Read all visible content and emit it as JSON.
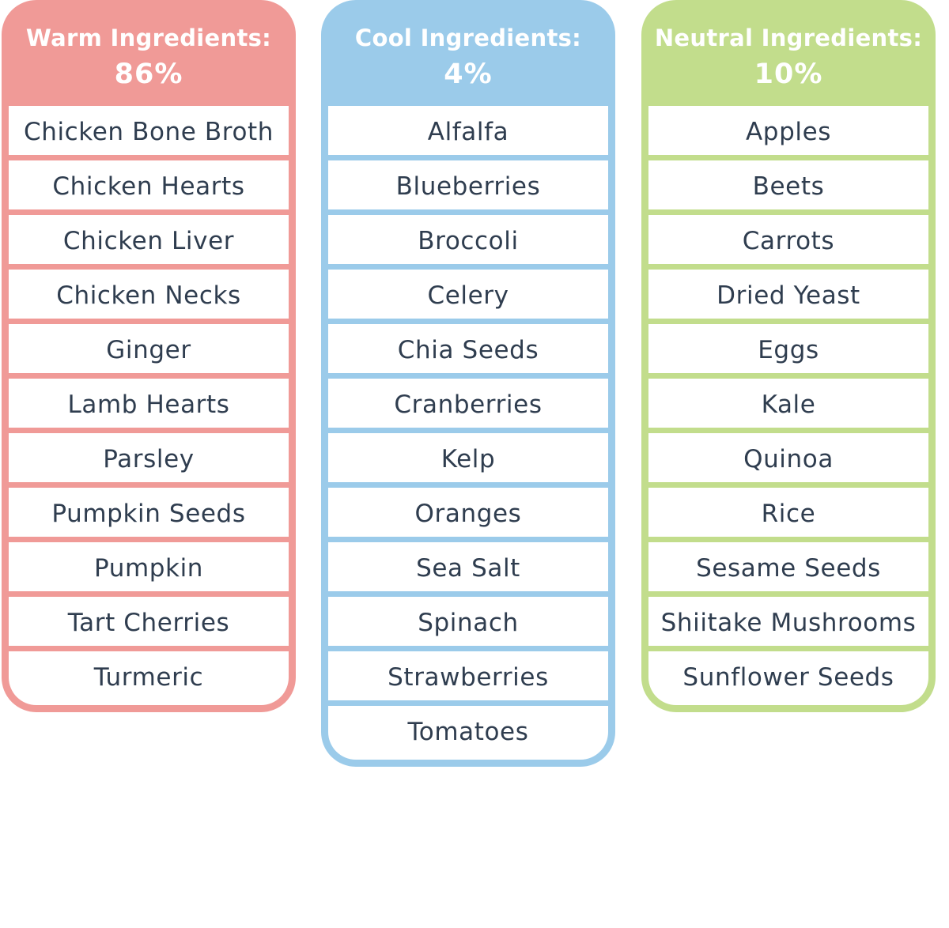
{
  "columns": [
    {
      "title": "Warm Ingredients:",
      "percent": "86%",
      "color": "#f09a97",
      "items": [
        "Chicken Bone Broth",
        "Chicken Hearts",
        "Chicken Liver",
        "Chicken Necks",
        "Ginger",
        "Lamb Hearts",
        "Parsley",
        "Pumpkin Seeds",
        "Pumpkin",
        "Tart Cherries",
        "Turmeric"
      ]
    },
    {
      "title": "Cool Ingredients:",
      "percent": "4%",
      "color": "#9bcbea",
      "items": [
        "Alfalfa",
        "Blueberries",
        "Broccoli",
        "Celery",
        "Chia Seeds",
        "Cranberries",
        "Kelp",
        "Oranges",
        "Sea Salt",
        "Spinach",
        "Strawberries",
        "Tomatoes"
      ]
    },
    {
      "title": "Neutral Ingredients:",
      "percent": "10%",
      "color": "#c2dd8c",
      "items": [
        "Apples",
        "Beets",
        "Carrots",
        "Dried Yeast",
        "Eggs",
        "Kale",
        "Quinoa",
        "Rice",
        "Sesame Seeds",
        "Shiitake Mushrooms",
        "Sunflower Seeds"
      ]
    }
  ]
}
